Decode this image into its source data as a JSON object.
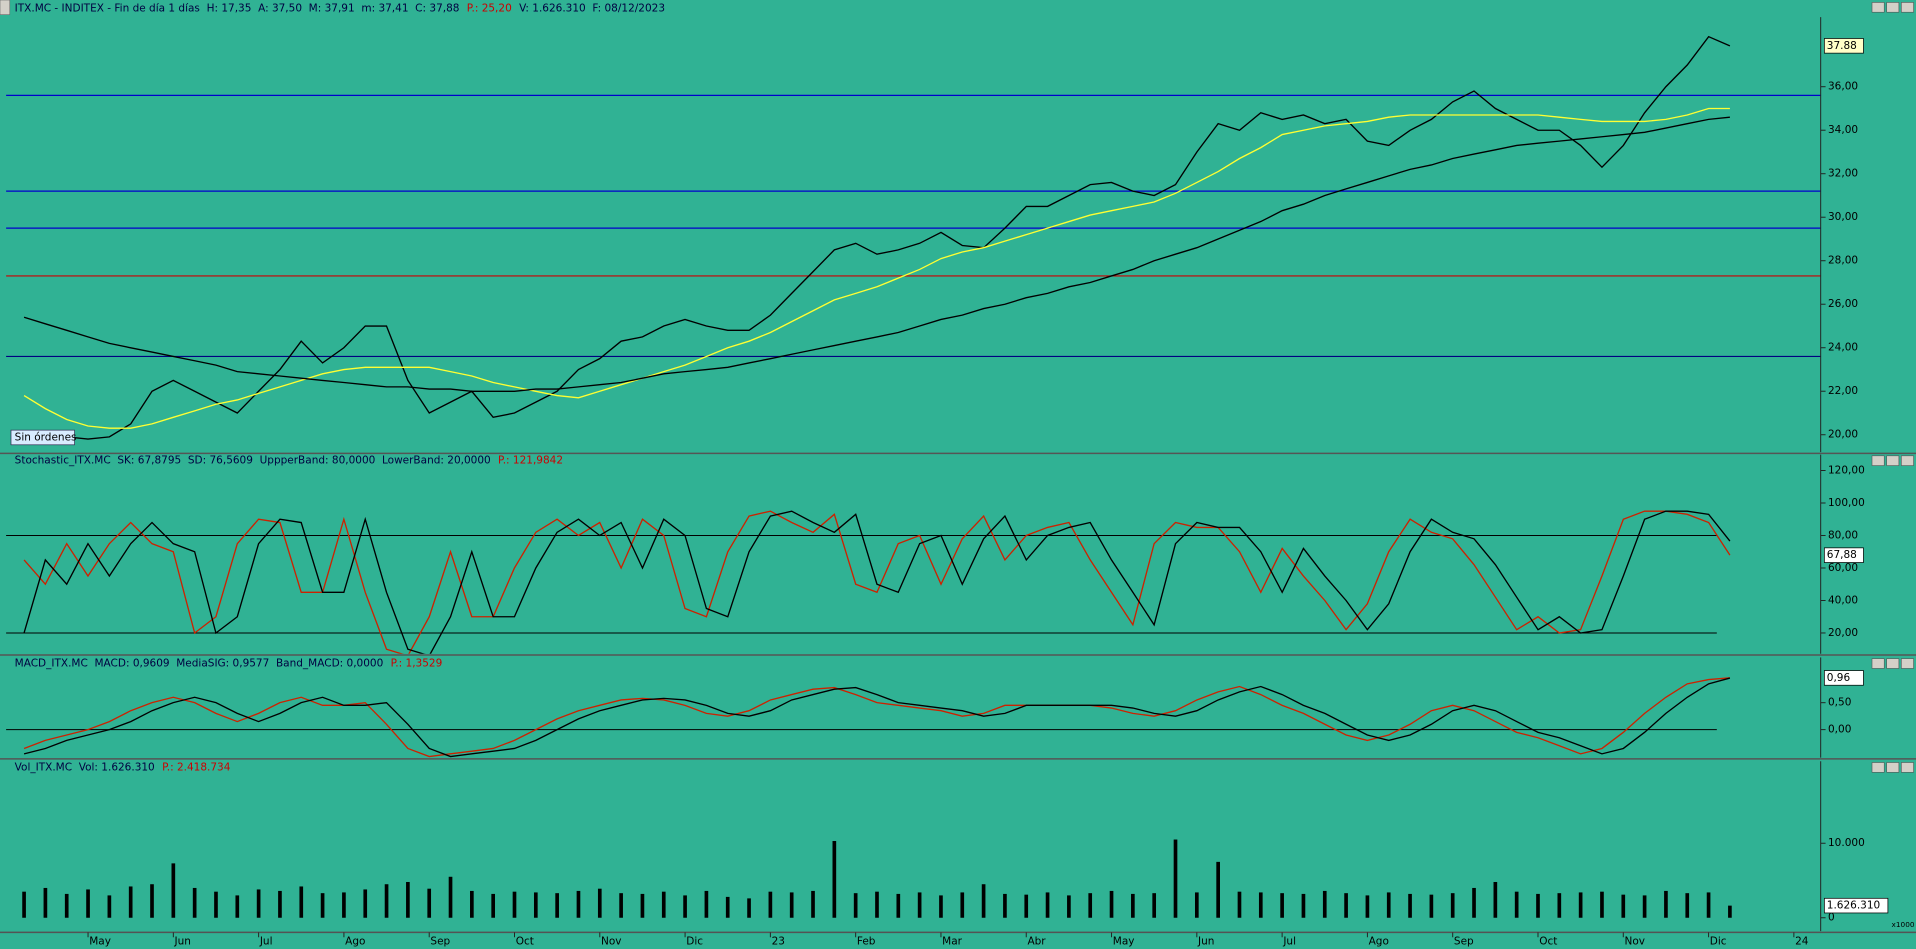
{
  "chart_data": [
    {
      "type": "line",
      "title": [
        "ITX.MC - INDITEX - Fin de día 1 días  H: 17,35  A: 37,50  M: 37,91  m: 37,41  C: 37,88",
        "P.: 25,20",
        "V: 1.626.310  F: 08/12/2023"
      ],
      "title_colors": [
        "#000040",
        "#cc0000",
        "#000040"
      ],
      "badge": "Sin órdenes",
      "categories": [
        null,
        null,
        null,
        "May",
        null,
        null,
        null,
        "Jun",
        null,
        null,
        null,
        "Jul",
        null,
        null,
        null,
        "Ago",
        null,
        null,
        null,
        "Sep",
        null,
        null,
        null,
        "Oct",
        null,
        null,
        null,
        "Nov",
        null,
        null,
        null,
        "Dic",
        null,
        null,
        null,
        "23",
        null,
        null,
        null,
        "Feb",
        null,
        null,
        null,
        "Mar",
        null,
        null,
        null,
        "Abr",
        null,
        null,
        null,
        "May",
        null,
        null,
        null,
        "Jun",
        null,
        null,
        null,
        "Jul",
        null,
        null,
        null,
        "Ago",
        null,
        null,
        null,
        "Sep",
        null,
        null,
        null,
        "Oct",
        null,
        null,
        null,
        "Nov",
        null,
        null,
        null,
        "Dic",
        null,
        null,
        null,
        "24"
      ],
      "series": [
        {
          "color": "#000000",
          "values": [
            20.0,
            20.0,
            19.9,
            19.8,
            19.9,
            20.5,
            22.0,
            22.5,
            22.0,
            21.5,
            21.0,
            22.0,
            23.0,
            24.3,
            23.3,
            24.0,
            25.0,
            25.0,
            22.5,
            21.0,
            21.5,
            22.0,
            20.8,
            21.0,
            21.5,
            22.0,
            23.0,
            23.5,
            24.3,
            24.5,
            25.0,
            25.3,
            25.0,
            24.8,
            24.8,
            25.5,
            26.5,
            27.5,
            28.5,
            28.8,
            28.3,
            28.5,
            28.8,
            29.3,
            28.7,
            28.6,
            29.5,
            30.5,
            30.5,
            31.0,
            31.5,
            31.6,
            31.2,
            31.0,
            31.5,
            33.0,
            34.3,
            34.0,
            34.8,
            34.5,
            34.7,
            34.3,
            34.5,
            33.5,
            33.3,
            34.0,
            34.5,
            35.3,
            35.8,
            35.0,
            34.5,
            34.0,
            34.0,
            33.3,
            32.3,
            33.3,
            34.8,
            36.0,
            37.0,
            38.3,
            37.88,
            null,
            null,
            null
          ]
        },
        {
          "color": "#ffff33",
          "values": [
            21.8,
            21.2,
            20.7,
            20.4,
            20.3,
            20.3,
            20.5,
            20.8,
            21.1,
            21.4,
            21.6,
            21.9,
            22.2,
            22.5,
            22.8,
            23.0,
            23.1,
            23.1,
            23.1,
            23.1,
            22.9,
            22.7,
            22.4,
            22.2,
            22.0,
            21.8,
            21.7,
            22.0,
            22.3,
            22.6,
            22.9,
            23.2,
            23.6,
            24.0,
            24.3,
            24.7,
            25.2,
            25.7,
            26.2,
            26.5,
            26.8,
            27.2,
            27.6,
            28.1,
            28.4,
            28.6,
            28.9,
            29.2,
            29.5,
            29.8,
            30.1,
            30.3,
            30.5,
            30.7,
            31.1,
            31.6,
            32.1,
            32.7,
            33.2,
            33.8,
            34.0,
            34.2,
            34.3,
            34.4,
            34.6,
            34.7,
            34.7,
            34.7,
            34.7,
            34.7,
            34.7,
            34.7,
            34.6,
            34.5,
            34.4,
            34.4,
            34.4,
            34.5,
            34.7,
            35.0,
            35.0,
            null,
            null,
            null
          ]
        },
        {
          "color": "#000000",
          "values": [
            25.4,
            25.1,
            24.8,
            24.5,
            24.2,
            24.0,
            23.8,
            23.6,
            23.4,
            23.2,
            22.9,
            22.8,
            22.7,
            22.6,
            22.5,
            22.4,
            22.3,
            22.2,
            22.2,
            22.1,
            22.1,
            22.0,
            22.0,
            22.0,
            22.1,
            22.1,
            22.2,
            22.3,
            22.4,
            22.6,
            22.8,
            22.9,
            23.0,
            23.1,
            23.3,
            23.5,
            23.7,
            23.9,
            24.1,
            24.3,
            24.5,
            24.7,
            25.0,
            25.3,
            25.5,
            25.8,
            26.0,
            26.3,
            26.5,
            26.8,
            27.0,
            27.3,
            27.6,
            28.0,
            28.3,
            28.6,
            29.0,
            29.4,
            29.8,
            30.3,
            30.6,
            31.0,
            31.3,
            31.6,
            31.9,
            32.2,
            32.4,
            32.7,
            32.9,
            33.1,
            33.3,
            33.4,
            33.5,
            33.6,
            33.7,
            33.8,
            33.9,
            34.1,
            34.3,
            34.5,
            34.6,
            null,
            null,
            null
          ]
        }
      ],
      "hlines": [
        {
          "value": 35.6,
          "color": "#0000cc"
        },
        {
          "value": 31.2,
          "color": "#0000cc"
        },
        {
          "value": 29.5,
          "color": "#0000cc"
        },
        {
          "value": 27.3,
          "color": "#cc0000"
        },
        {
          "value": 23.6,
          "color": "#000080"
        }
      ],
      "ylim": [
        19.2,
        39.2
      ],
      "yticks": [
        {
          "value": 20,
          "label": "20,00"
        },
        {
          "value": 22,
          "label": "22,00"
        },
        {
          "value": 24,
          "label": "24,00"
        },
        {
          "value": 26,
          "label": "26,00"
        },
        {
          "value": 28,
          "label": "28,00"
        },
        {
          "value": 30,
          "label": "30,00"
        },
        {
          "value": 32,
          "label": "32,00"
        },
        {
          "value": 34,
          "label": "34,00"
        },
        {
          "value": 36,
          "label": "36,00"
        }
      ],
      "last": 37.88
    },
    {
      "type": "line",
      "title": [
        "Stochastic_ITX.MC  SK: 67,8795  SD: 76,5609  UppperBand: 80,0000  LowerBand: 20,0000",
        "P.: 121,9842"
      ],
      "title_colors": [
        "#000040",
        "#cc0000"
      ],
      "series": [
        {
          "color": "#cc2200",
          "values": [
            65,
            50,
            75,
            55,
            75,
            88,
            75,
            70,
            20,
            30,
            75,
            90,
            88,
            45,
            45,
            90,
            45,
            10,
            6,
            30,
            70,
            30,
            30,
            60,
            82,
            90,
            80,
            88,
            60,
            90,
            80,
            35,
            30,
            70,
            92,
            95,
            88,
            82,
            93,
            50,
            45,
            75,
            80,
            50,
            78,
            92,
            65,
            80,
            85,
            88,
            65,
            45,
            25,
            75,
            88,
            85,
            85,
            70,
            45,
            72,
            55,
            40,
            22,
            38,
            70,
            90,
            82,
            78,
            62,
            42,
            22,
            30,
            20,
            22,
            55,
            90,
            95,
            95,
            93,
            88,
            67.88,
            null,
            null,
            null
          ]
        },
        {
          "color": "#000000",
          "values": [
            20,
            65,
            50,
            75,
            55,
            75,
            88,
            75,
            70,
            20,
            30,
            75,
            90,
            88,
            45,
            45,
            90,
            45,
            10,
            6,
            30,
            70,
            30,
            30,
            60,
            82,
            90,
            80,
            88,
            60,
            90,
            80,
            35,
            30,
            70,
            92,
            95,
            88,
            82,
            93,
            50,
            45,
            75,
            80,
            50,
            78,
            92,
            65,
            80,
            85,
            88,
            65,
            45,
            25,
            75,
            88,
            85,
            85,
            70,
            45,
            72,
            55,
            40,
            22,
            38,
            70,
            90,
            82,
            78,
            62,
            42,
            22,
            30,
            20,
            22,
            55,
            90,
            95,
            95,
            93,
            76.56,
            null,
            null,
            null
          ]
        }
      ],
      "bands": [
        80,
        20
      ],
      "ylim": [
        7.2,
        129.8
      ],
      "yticks": [
        {
          "value": 20,
          "label": "20,00"
        },
        {
          "value": 40,
          "label": "40,00"
        },
        {
          "value": 60,
          "label": "60,00"
        },
        {
          "value": 80,
          "label": "80,00"
        },
        {
          "value": 100,
          "label": "100,00"
        },
        {
          "value": 120,
          "label": "120,00"
        }
      ],
      "last": {
        "value": 67.88,
        "label": "67,88"
      }
    },
    {
      "type": "line",
      "title": [
        "MACD_ITX.MC  MACD: 0,9609  MediaSIG: 0,9577  Band_MACD: 0,0000",
        "P.: 1,3529"
      ],
      "title_colors": [
        "#000040",
        "#cc0000"
      ],
      "series": [
        {
          "color": "#cc2200",
          "values": [
            -0.35,
            -0.2,
            -0.1,
            0.0,
            0.15,
            0.35,
            0.5,
            0.6,
            0.5,
            0.3,
            0.15,
            0.3,
            0.5,
            0.6,
            0.45,
            0.45,
            0.5,
            0.1,
            -0.35,
            -0.5,
            -0.45,
            -0.4,
            -0.35,
            -0.2,
            0.0,
            0.2,
            0.35,
            0.45,
            0.55,
            0.58,
            0.55,
            0.45,
            0.3,
            0.25,
            0.35,
            0.55,
            0.65,
            0.75,
            0.78,
            0.65,
            0.5,
            0.45,
            0.4,
            0.35,
            0.25,
            0.3,
            0.45,
            0.45,
            0.45,
            0.45,
            0.45,
            0.4,
            0.3,
            0.25,
            0.35,
            0.55,
            0.7,
            0.8,
            0.65,
            0.45,
            0.3,
            0.1,
            -0.1,
            -0.2,
            -0.1,
            0.1,
            0.35,
            0.45,
            0.35,
            0.15,
            -0.05,
            -0.15,
            -0.3,
            -0.45,
            -0.35,
            -0.05,
            0.3,
            0.6,
            0.85,
            0.93,
            0.9609,
            null,
            null,
            null
          ]
        },
        {
          "color": "#000000",
          "values": [
            -0.45,
            -0.35,
            -0.2,
            -0.1,
            0.0,
            0.15,
            0.35,
            0.5,
            0.6,
            0.5,
            0.3,
            0.15,
            0.3,
            0.5,
            0.6,
            0.45,
            0.45,
            0.5,
            0.1,
            -0.35,
            -0.5,
            -0.45,
            -0.4,
            -0.35,
            -0.2,
            0.0,
            0.2,
            0.35,
            0.45,
            0.55,
            0.58,
            0.55,
            0.45,
            0.3,
            0.25,
            0.35,
            0.55,
            0.65,
            0.75,
            0.78,
            0.65,
            0.5,
            0.45,
            0.4,
            0.35,
            0.25,
            0.3,
            0.45,
            0.45,
            0.45,
            0.45,
            0.45,
            0.4,
            0.3,
            0.25,
            0.35,
            0.55,
            0.7,
            0.8,
            0.65,
            0.45,
            0.3,
            0.1,
            -0.1,
            -0.2,
            -0.1,
            0.1,
            0.35,
            0.45,
            0.35,
            0.15,
            -0.05,
            -0.15,
            -0.3,
            -0.45,
            -0.35,
            -0.05,
            0.3,
            0.6,
            0.85,
            0.9577,
            null,
            null,
            null
          ]
        }
      ],
      "bands": [
        0
      ],
      "ylim": [
        -0.52,
        1.34
      ],
      "yticks": [
        {
          "value": 0,
          "label": "0,00"
        },
        {
          "value": 0.5,
          "label": "0,50"
        }
      ],
      "last": {
        "value": 0.96,
        "label": "0,96"
      }
    },
    {
      "type": "bar",
      "title": [
        "Vol_ITX.MC  Vol: 1.626.310",
        "P.: 2.418.734"
      ],
      "title_colors": [
        "#000040",
        "#cc0000"
      ],
      "color": "#000000",
      "values": [
        3500,
        4000,
        3200,
        3800,
        3000,
        4200,
        4500,
        7300,
        4000,
        3500,
        3000,
        3800,
        3600,
        4200,
        3300,
        3400,
        3800,
        4500,
        4800,
        3900,
        5500,
        3600,
        3200,
        3500,
        3400,
        3300,
        3600,
        3900,
        3300,
        3200,
        3500,
        3000,
        3600,
        2800,
        2600,
        3500,
        3400,
        3600,
        10300,
        3300,
        3500,
        3200,
        3400,
        3000,
        3400,
        4500,
        3200,
        3100,
        3400,
        3000,
        3300,
        3600,
        3200,
        3300,
        10500,
        3400,
        7500,
        3500,
        3400,
        3300,
        3200,
        3600,
        3300,
        3000,
        3400,
        3200,
        3100,
        3300,
        4000,
        4800,
        3500,
        3200,
        3300,
        3400,
        3500,
        3100,
        3000,
        3600,
        3300,
        3400,
        1626.31,
        null,
        null,
        null
      ],
      "ylim": [
        -1800,
        21000
      ],
      "yticks": [
        0,
        {
          "value": 10000,
          "label": "10.000"
        }
      ],
      "unit_label": "x1000",
      "last": {
        "value": 1626.31,
        "label": "1.626.310"
      }
    }
  ]
}
